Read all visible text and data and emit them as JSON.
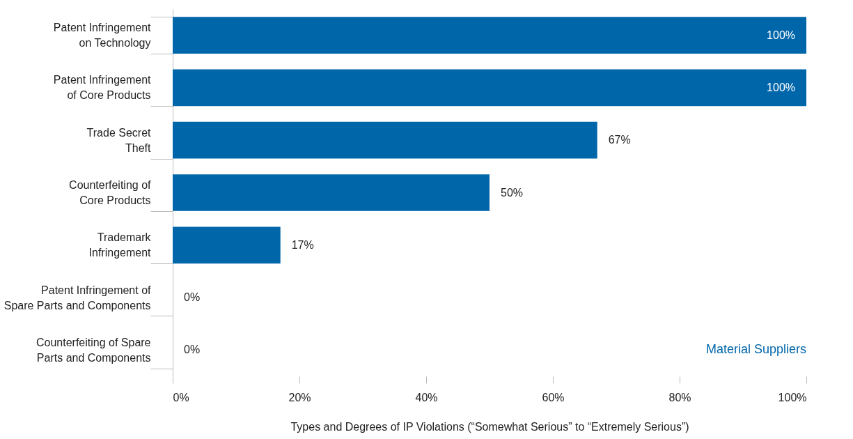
{
  "chart_data": {
    "type": "bar",
    "orientation": "horizontal",
    "categories": [
      "Patent Infringement\non Technology",
      "Patent Infringement\nof Core Products",
      "Trade Secret\nTheft",
      "Counterfeiting of\nCore Products",
      "Trademark\nInfringement",
      "Patent Infringement of\nSpare Parts and Components",
      "Counterfeiting of Spare\nParts and Components"
    ],
    "series": [
      {
        "name": "Material Suppliers",
        "color": "#0066aa",
        "values": [
          100,
          100,
          67,
          50,
          17,
          0,
          0
        ]
      }
    ],
    "value_labels": [
      "100%",
      "100%",
      "67%",
      "50%",
      "17%",
      "0%",
      "0%"
    ],
    "xlim": [
      0,
      100
    ],
    "xticks": [
      {
        "value": 0,
        "label": "0%"
      },
      {
        "value": 20,
        "label": "20%"
      },
      {
        "value": 40,
        "label": "40%"
      },
      {
        "value": 60,
        "label": "60%"
      },
      {
        "value": 80,
        "label": "80%"
      },
      {
        "value": 100,
        "label": "100%"
      }
    ],
    "xlabel": "Types and Degrees of IP Violations (“Somewhat Serious” to “Extremely Serious”)",
    "grid": false
  }
}
